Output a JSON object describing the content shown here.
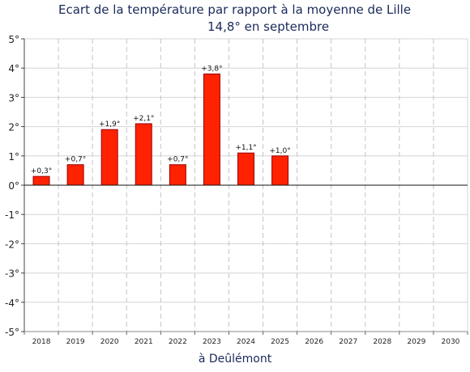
{
  "chart_data": {
    "type": "bar",
    "title": "Ecart de la température par rapport à la moyenne de Lille",
    "subtitle": "14,8° en septembre",
    "xlabel": "à Deûlémont",
    "ylabel": "",
    "ylim": [
      -5,
      5
    ],
    "yticks": [
      -5,
      -4,
      -3,
      -2,
      -1,
      0,
      1,
      2,
      3,
      4,
      5
    ],
    "ytick_labels": [
      "-5°",
      "-4°",
      "-3°",
      "-2°",
      "-1°",
      "0°",
      "1°",
      "2°",
      "3°",
      "4°",
      "5°"
    ],
    "categories": [
      "2018",
      "2019",
      "2020",
      "2021",
      "2022",
      "2023",
      "2024",
      "2025",
      "2026",
      "2027",
      "2028",
      "2029",
      "2030"
    ],
    "values": [
      0.3,
      0.7,
      1.9,
      2.1,
      0.7,
      3.8,
      1.1,
      1.0,
      null,
      null,
      null,
      null,
      null
    ],
    "data_labels": [
      "+0,3°",
      "+0,7°",
      "+1,9°",
      "+2,1°",
      "+0,7°",
      "+3,8°",
      "+1,1°",
      "+1,0°",
      "",
      "",
      "",
      "",
      ""
    ],
    "bar_color": "#ff2200",
    "bar_edge_color": "#990000",
    "grid": true,
    "legend": "none"
  }
}
